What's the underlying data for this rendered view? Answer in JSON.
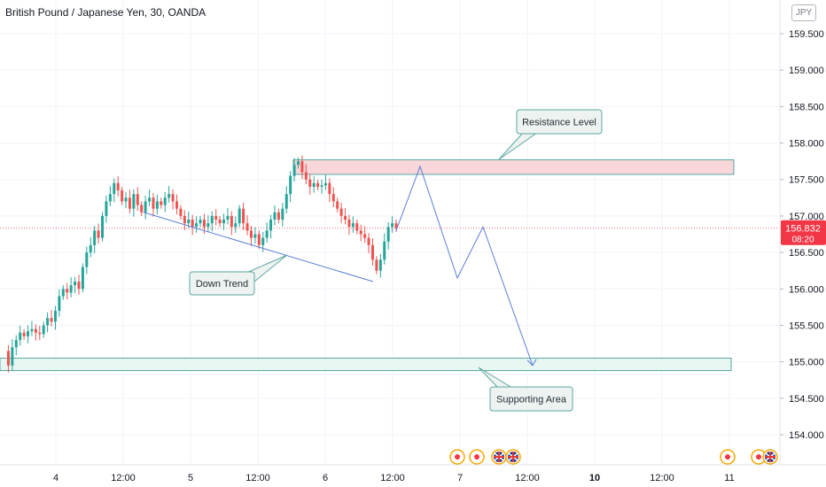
{
  "header": {
    "title": "British Pound / Japanese Yen, 30, OANDA",
    "currency_button": "JPY"
  },
  "price_axis": {
    "ticks": [
      "159.500",
      "159.000",
      "158.500",
      "158.000",
      "157.500",
      "157.000",
      "156.500",
      "156.000",
      "155.500",
      "155.000",
      "154.500",
      "154.000"
    ],
    "current_price": "156.832",
    "countdown": "08:20",
    "current_price_color": "#f23645"
  },
  "time_axis": {
    "labels": [
      "4",
      "12:00",
      "5",
      "12:00",
      "6",
      "12:00",
      "7",
      "12:00",
      "10",
      "12:00",
      "11"
    ],
    "bold_label": "10"
  },
  "annotations": {
    "resistance_label": "Resistance Level",
    "support_label": "Supporting Area",
    "downtrend_label": "Down Trend",
    "resistance_color": "#f9d6d9",
    "support_color": "#e8f7f2",
    "line_color": "#5b7fd6",
    "callout_border": "#59a7a1"
  },
  "events": {
    "icons": [
      "event-dot-icon",
      "event-dot-icon",
      "uk-flag-icon",
      "uk-flag-icon",
      "event-dot-icon",
      "event-dot-icon",
      "uk-flag-icon"
    ]
  },
  "chart_data": {
    "type": "candlestick",
    "symbol": "GBP/JPY",
    "timeframe": "30",
    "ylim": [
      153.7,
      159.9
    ],
    "grid": true,
    "last_price": 156.832,
    "price_path": [
      155.15,
      154.95,
      155.2,
      155.3,
      155.4,
      155.35,
      155.42,
      155.45,
      155.4,
      155.38,
      155.5,
      155.6,
      155.55,
      155.7,
      155.9,
      156.0,
      155.95,
      156.05,
      156.1,
      156.0,
      156.3,
      156.5,
      156.6,
      156.8,
      156.7,
      157.0,
      157.2,
      157.3,
      157.45,
      157.35,
      157.2,
      157.25,
      157.1,
      157.3,
      157.15,
      157.05,
      157.2,
      157.25,
      157.1,
      157.2,
      157.15,
      157.25,
      157.3,
      157.2,
      157.1,
      157.0,
      156.9,
      156.95,
      156.85,
      156.9,
      156.95,
      156.85,
      156.9,
      157.0,
      156.95,
      156.9,
      156.95,
      157.0,
      156.85,
      156.9,
      157.1,
      156.9,
      156.8,
      156.7,
      156.75,
      156.6,
      156.7,
      156.8,
      156.95,
      157.05,
      156.95,
      157.1,
      157.3,
      157.55,
      157.7,
      157.75,
      157.6,
      157.5,
      157.4,
      157.45,
      157.4,
      157.42,
      157.45,
      157.3,
      157.2,
      157.1,
      157.0,
      156.95,
      156.85,
      156.9,
      156.8,
      156.75,
      156.7,
      156.6,
      156.4,
      156.25,
      156.4,
      156.65,
      156.85,
      156.9,
      156.83
    ],
    "resistance_zone": [
      157.57,
      157.77
    ],
    "support_zone": [
      154.88,
      155.05
    ],
    "projection": [
      157.68,
      156.15,
      156.85,
      154.95
    ]
  }
}
